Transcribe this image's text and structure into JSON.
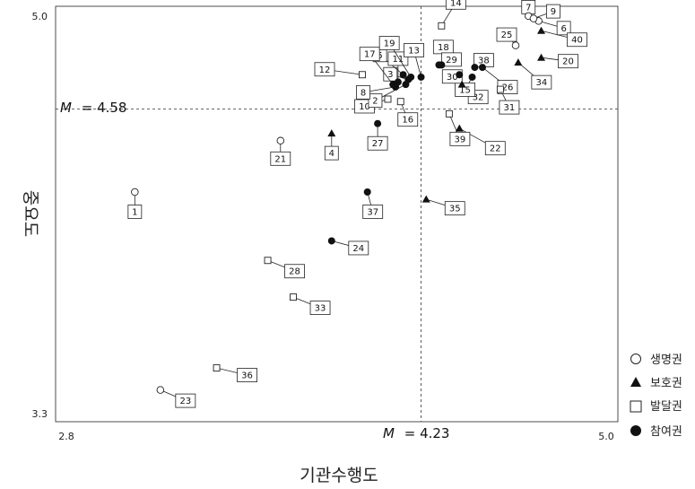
{
  "chart_data": {
    "type": "scatter",
    "xlabel": "기관수행도",
    "ylabel": "중요도",
    "xlim": [
      2.8,
      5.0
    ],
    "ylim": [
      3.3,
      5.0
    ],
    "x_ticks": [
      "2.8",
      "5.0"
    ],
    "y_ticks": [
      "3.3",
      "5.0"
    ],
    "grid": false,
    "legend_position": "bottom-right",
    "reference_lines": [
      {
        "axis": "y",
        "value": 4.58,
        "symbol": "M",
        "label": "= 4.58"
      },
      {
        "axis": "x",
        "value": 4.23,
        "symbol": "M",
        "label": "= 4.23"
      }
    ],
    "series": [
      {
        "name": "생명권",
        "marker": "circle-open",
        "points": [
          {
            "id": "1",
            "x": 3.11,
            "y": 4.24
          },
          {
            "id": "6",
            "x": 4.69,
            "y": 4.94
          },
          {
            "id": "7",
            "x": 4.65,
            "y": 4.96
          },
          {
            "id": "9",
            "x": 4.67,
            "y": 4.95
          },
          {
            "id": "21",
            "x": 3.68,
            "y": 4.45
          },
          {
            "id": "23",
            "x": 3.21,
            "y": 3.43
          },
          {
            "id": "25",
            "x": 4.6,
            "y": 4.84
          }
        ]
      },
      {
        "name": "보호권",
        "marker": "triangle-filled",
        "points": [
          {
            "id": "4",
            "x": 3.88,
            "y": 4.48
          },
          {
            "id": "22",
            "x": 4.38,
            "y": 4.5
          },
          {
            "id": "32",
            "x": 4.39,
            "y": 4.68
          },
          {
            "id": "34",
            "x": 4.61,
            "y": 4.77
          },
          {
            "id": "35",
            "x": 4.25,
            "y": 4.21
          },
          {
            "id": "40",
            "x": 4.7,
            "y": 4.9
          },
          {
            "id": "20",
            "x": 4.7,
            "y": 4.79
          }
        ]
      },
      {
        "name": "발달권",
        "marker": "square-open",
        "points": [
          {
            "id": "10",
            "x": 4.1,
            "y": 4.62
          },
          {
            "id": "12",
            "x": 4.0,
            "y": 4.72
          },
          {
            "id": "14",
            "x": 4.31,
            "y": 4.92
          },
          {
            "id": "16",
            "x": 4.15,
            "y": 4.61
          },
          {
            "id": "28",
            "x": 3.63,
            "y": 3.96
          },
          {
            "id": "31",
            "x": 4.54,
            "y": 4.66
          },
          {
            "id": "33",
            "x": 3.73,
            "y": 3.81
          },
          {
            "id": "36",
            "x": 3.43,
            "y": 3.52
          },
          {
            "id": "39",
            "x": 4.34,
            "y": 4.56
          }
        ]
      },
      {
        "name": "참여권",
        "marker": "circle-filled",
        "points": [
          {
            "id": "2",
            "x": 4.17,
            "y": 4.68
          },
          {
            "id": "3",
            "x": 4.18,
            "y": 4.7
          },
          {
            "id": "5",
            "x": 4.16,
            "y": 4.72
          },
          {
            "id": "8",
            "x": 4.13,
            "y": 4.67
          },
          {
            "id": "11",
            "x": 4.14,
            "y": 4.69
          },
          {
            "id": "13",
            "x": 4.23,
            "y": 4.71
          },
          {
            "id": "15",
            "x": 4.43,
            "y": 4.71
          },
          {
            "id": "17",
            "x": 4.12,
            "y": 4.68
          },
          {
            "id": "18",
            "x": 4.31,
            "y": 4.76
          },
          {
            "id": "19",
            "x": 4.19,
            "y": 4.71
          },
          {
            "id": "24",
            "x": 3.88,
            "y": 4.04
          },
          {
            "id": "26",
            "x": 4.47,
            "y": 4.75
          },
          {
            "id": "27",
            "x": 4.06,
            "y": 4.52
          },
          {
            "id": "29",
            "x": 4.3,
            "y": 4.76
          },
          {
            "id": "30",
            "x": 4.38,
            "y": 4.72
          },
          {
            "id": "37",
            "x": 4.02,
            "y": 4.24
          },
          {
            "id": "38",
            "x": 4.44,
            "y": 4.75
          }
        ]
      }
    ]
  }
}
